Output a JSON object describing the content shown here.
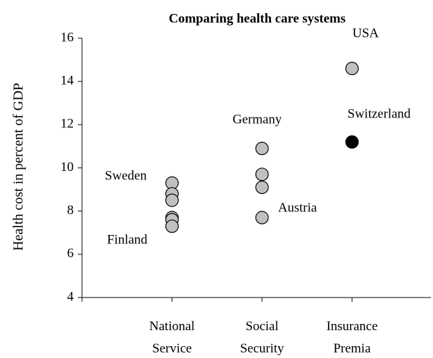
{
  "chart_data": {
    "type": "strip",
    "title": "Comparing health care systems",
    "y_label": "Health cost in percent of GDP",
    "categories": [
      "National Service",
      "Social Security",
      "Insurance Premia"
    ],
    "values": [
      [
        9.3,
        8.8,
        8.5,
        7.7,
        7.6,
        7.3
      ],
      [
        10.9,
        9.7,
        9.1,
        7.7
      ],
      [
        14.6,
        11.2
      ]
    ],
    "colors": [
      [
        "#c0c0c0",
        "#c0c0c0",
        "#c0c0c0",
        "#c0c0c0",
        "#c0c0c0",
        "#c0c0c0"
      ],
      [
        "#c0c0c0",
        "#c0c0c0",
        "#c0c0c0",
        "#c0c0c0"
      ],
      [
        "#c0c0c0",
        "#000000"
      ]
    ],
    "annotations": [
      "Sweden",
      "Finland",
      "Germany",
      "Austria",
      "USA",
      "Switzerland"
    ],
    "ylim": [
      4,
      16
    ],
    "yticks": [
      4,
      6,
      8,
      10,
      12,
      14,
      16
    ]
  }
}
